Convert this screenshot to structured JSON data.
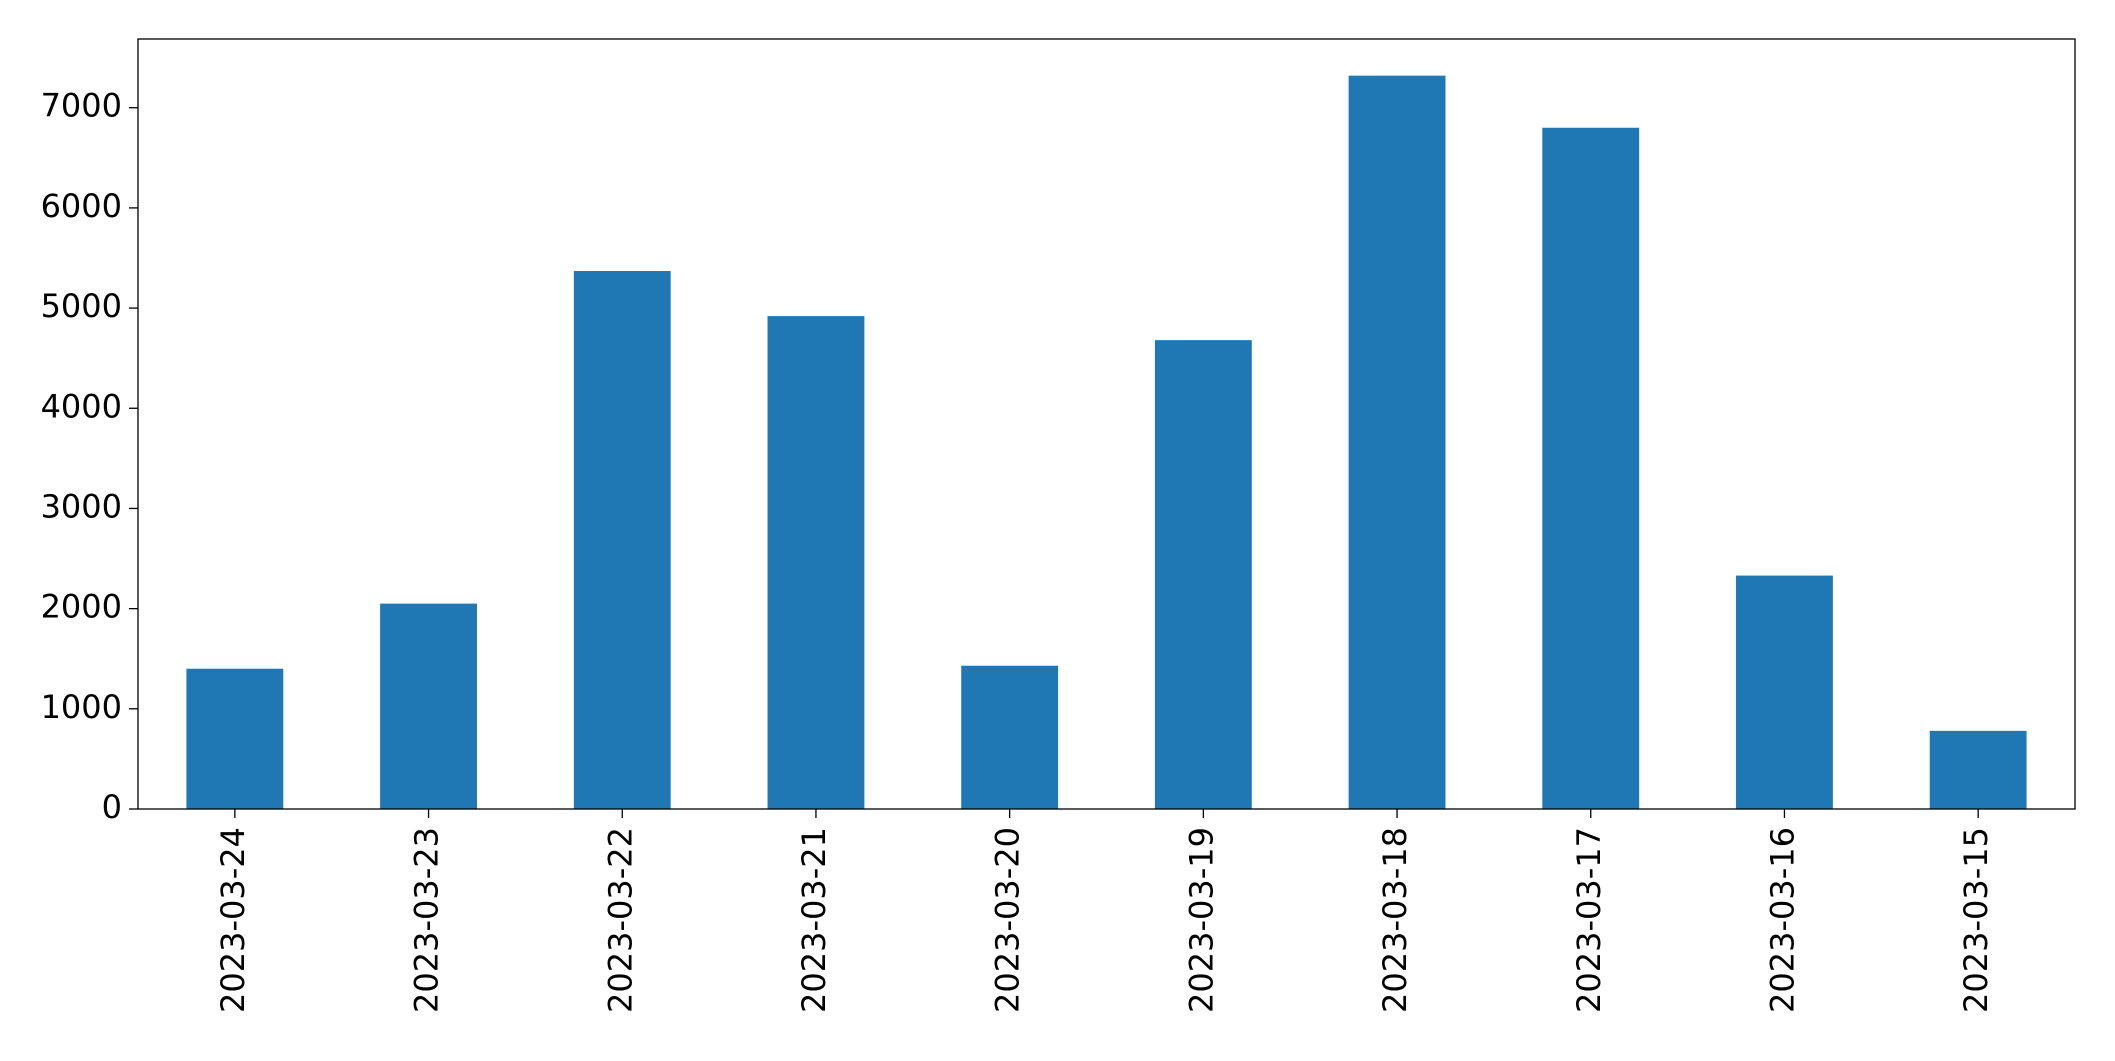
{
  "chart_data": {
    "type": "bar",
    "categories": [
      "2023-03-24",
      "2023-03-23",
      "2023-03-22",
      "2023-03-21",
      "2023-03-20",
      "2023-03-19",
      "2023-03-18",
      "2023-03-17",
      "2023-03-16",
      "2023-03-15"
    ],
    "values": [
      1400,
      2050,
      5370,
      4920,
      1430,
      4680,
      7320,
      6800,
      2330,
      780
    ],
    "color": "#1f77b4",
    "ylim": [
      0,
      7686
    ],
    "yticks": [
      0,
      1000,
      2000,
      3000,
      4000,
      5000,
      6000,
      7000
    ],
    "grid": false
  }
}
